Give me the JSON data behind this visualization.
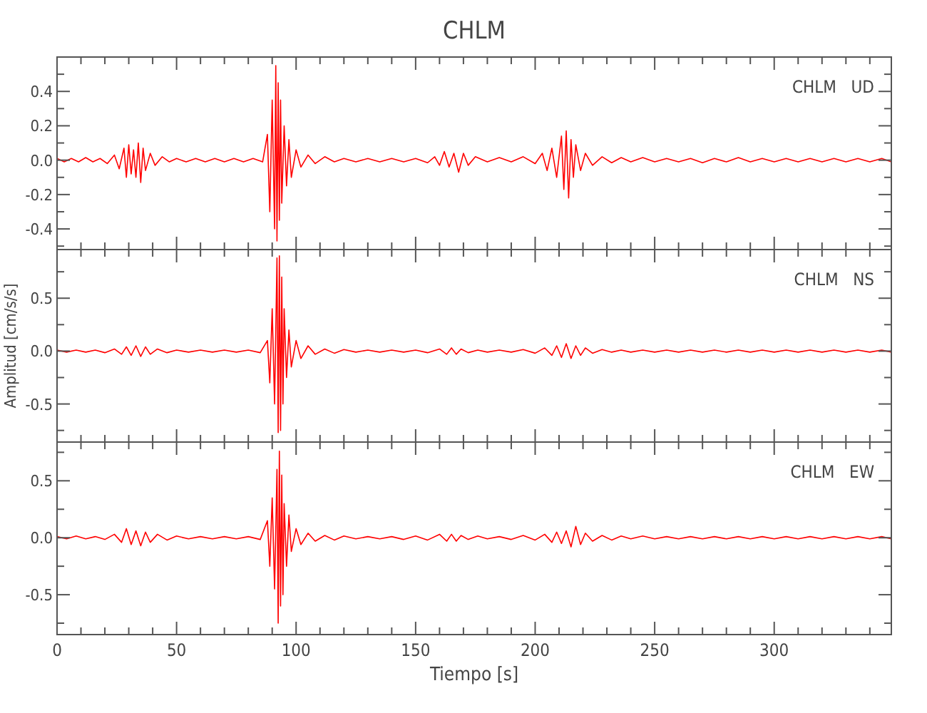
{
  "chart_data": [
    {
      "type": "line",
      "title": "CHLM",
      "annotations": [
        "CHLM   UD"
      ],
      "tick_labels": "y",
      "xlim": [
        0,
        349
      ],
      "ylim": [
        -0.52,
        0.6
      ],
      "xticks": [
        0,
        {
          "value": 10,
          "label": null
        },
        {
          "value": 20,
          "label": null
        },
        {
          "value": 30,
          "label": null
        },
        {
          "value": 40,
          "label": null
        },
        50,
        {
          "value": 60,
          "label": null
        },
        {
          "value": 70,
          "label": null
        },
        {
          "value": 80,
          "label": null
        },
        {
          "value": 90,
          "label": null
        },
        100,
        {
          "value": 110,
          "label": null
        },
        {
          "value": 120,
          "label": null
        },
        {
          "value": 130,
          "label": null
        },
        {
          "value": 140,
          "label": null
        },
        150,
        {
          "value": 160,
          "label": null
        },
        {
          "value": 170,
          "label": null
        },
        {
          "value": 180,
          "label": null
        },
        {
          "value": 190,
          "label": null
        },
        200,
        {
          "value": 210,
          "label": null
        },
        {
          "value": 220,
          "label": null
        },
        {
          "value": 230,
          "label": null
        },
        {
          "value": 240,
          "label": null
        },
        250,
        {
          "value": 260,
          "label": null
        },
        {
          "value": 270,
          "label": null
        },
        {
          "value": 280,
          "label": null
        },
        {
          "value": 290,
          "label": null
        },
        300,
        {
          "value": 310,
          "label": null
        },
        {
          "value": 320,
          "label": null
        },
        {
          "value": 330,
          "label": null
        },
        {
          "value": 340,
          "label": null
        }
      ],
      "yticks": [
        {
          "value": -0.5,
          "label": null
        },
        {
          "value": -0.4,
          "label": "-0.4"
        },
        {
          "value": -0.3,
          "label": null
        },
        {
          "value": -0.2,
          "label": "-0.2"
        },
        {
          "value": -0.1,
          "label": null
        },
        {
          "value": 0,
          "label": "0.0"
        },
        {
          "value": 0.1,
          "label": null
        },
        {
          "value": 0.2,
          "label": "0.2"
        },
        {
          "value": 0.3,
          "label": null
        },
        {
          "value": 0.4,
          "label": "0.4"
        },
        {
          "value": 0.5,
          "label": null
        }
      ],
      "series": [
        {
          "color": "#ff0000",
          "x": [
            0,
            3,
            6,
            9,
            12,
            15,
            18,
            21,
            24,
            26,
            28,
            29,
            30,
            31,
            32,
            33,
            34,
            35,
            36,
            37,
            39,
            41,
            44,
            47,
            50,
            54,
            58,
            62,
            66,
            70,
            74,
            78,
            82,
            86,
            88,
            89,
            90,
            91,
            91.5,
            92,
            92.5,
            93,
            93.5,
            94,
            95,
            96,
            97,
            98,
            100,
            102,
            105,
            108,
            112,
            116,
            120,
            125,
            130,
            135,
            140,
            145,
            150,
            155,
            158,
            160,
            162,
            164,
            166,
            168,
            170,
            172,
            175,
            180,
            185,
            190,
            195,
            200,
            203,
            205,
            207,
            209,
            211,
            212,
            213,
            214,
            215,
            216,
            217,
            219,
            221,
            224,
            228,
            232,
            236,
            240,
            245,
            250,
            255,
            260,
            265,
            270,
            275,
            280,
            285,
            290,
            295,
            300,
            305,
            310,
            315,
            320,
            325,
            330,
            335,
            340,
            345,
            349
          ],
          "values": [
            0.01,
            -0.01,
            0.01,
            -0.01,
            0.015,
            -0.01,
            0.01,
            -0.02,
            0.03,
            -0.05,
            0.07,
            -0.1,
            0.09,
            -0.08,
            0.06,
            -0.1,
            0.1,
            -0.13,
            0.07,
            -0.06,
            0.04,
            -0.03,
            0.02,
            -0.01,
            0.01,
            -0.01,
            0.01,
            -0.01,
            0.01,
            -0.01,
            0.01,
            -0.01,
            0.01,
            -0.01,
            0.15,
            -0.3,
            0.35,
            -0.4,
            0.55,
            -0.47,
            0.45,
            -0.35,
            0.35,
            -0.25,
            0.2,
            -0.15,
            0.12,
            -0.1,
            0.06,
            -0.04,
            0.03,
            -0.02,
            0.02,
            -0.01,
            0.01,
            -0.01,
            0.01,
            -0.01,
            0.01,
            -0.01,
            0.01,
            -0.015,
            0.02,
            -0.03,
            0.05,
            -0.04,
            0.04,
            -0.07,
            0.04,
            -0.03,
            0.02,
            -0.01,
            0.015,
            -0.01,
            0.02,
            -0.02,
            0.04,
            -0.06,
            0.07,
            -0.1,
            0.14,
            -0.17,
            0.17,
            -0.22,
            0.12,
            -0.1,
            0.09,
            -0.06,
            0.04,
            -0.03,
            0.02,
            -0.015,
            0.015,
            -0.01,
            0.015,
            -0.01,
            0.01,
            -0.01,
            0.01,
            -0.015,
            0.01,
            -0.01,
            0.015,
            -0.01,
            0.01,
            -0.01,
            0.01,
            -0.01,
            0.01,
            -0.01,
            0.01,
            -0.01,
            0.01,
            -0.01,
            0.01,
            -0.01
          ]
        }
      ]
    },
    {
      "type": "line",
      "ylabel": "Amplitud [cm/s/s]",
      "annotations": [
        "CHLM   NS"
      ],
      "tick_labels": "y",
      "xlim": [
        0,
        349
      ],
      "ylim": [
        -0.86,
        0.96
      ],
      "xticks": [
        0,
        {
          "value": 10,
          "label": null
        },
        {
          "value": 20,
          "label": null
        },
        {
          "value": 30,
          "label": null
        },
        {
          "value": 40,
          "label": null
        },
        50,
        {
          "value": 60,
          "label": null
        },
        {
          "value": 70,
          "label": null
        },
        {
          "value": 80,
          "label": null
        },
        {
          "value": 90,
          "label": null
        },
        100,
        {
          "value": 110,
          "label": null
        },
        {
          "value": 120,
          "label": null
        },
        {
          "value": 130,
          "label": null
        },
        {
          "value": 140,
          "label": null
        },
        150,
        {
          "value": 160,
          "label": null
        },
        {
          "value": 170,
          "label": null
        },
        {
          "value": 180,
          "label": null
        },
        {
          "value": 190,
          "label": null
        },
        200,
        {
          "value": 210,
          "label": null
        },
        {
          "value": 220,
          "label": null
        },
        {
          "value": 230,
          "label": null
        },
        {
          "value": 240,
          "label": null
        },
        250,
        {
          "value": 260,
          "label": null
        },
        {
          "value": 270,
          "label": null
        },
        {
          "value": 280,
          "label": null
        },
        {
          "value": 290,
          "label": null
        },
        300,
        {
          "value": 310,
          "label": null
        },
        {
          "value": 320,
          "label": null
        },
        {
          "value": 330,
          "label": null
        },
        {
          "value": 340,
          "label": null
        }
      ],
      "yticks": [
        {
          "value": -0.75,
          "label": null
        },
        {
          "value": -0.5,
          "label": "-0.5"
        },
        {
          "value": -0.25,
          "label": null
        },
        {
          "value": 0,
          "label": "0.0"
        },
        {
          "value": 0.25,
          "label": null
        },
        {
          "value": 0.5,
          "label": "0.5"
        },
        {
          "value": 0.75,
          "label": null
        }
      ],
      "series": [
        {
          "color": "#ff0000",
          "x": [
            0,
            4,
            8,
            12,
            16,
            20,
            24,
            27,
            29,
            31,
            33,
            35,
            37,
            39,
            42,
            46,
            50,
            55,
            60,
            65,
            70,
            75,
            80,
            85,
            88,
            89,
            90,
            91,
            92,
            92.5,
            93,
            93.5,
            94,
            94.5,
            95,
            96,
            97,
            98,
            100,
            102,
            105,
            108,
            112,
            116,
            120,
            125,
            130,
            135,
            140,
            145,
            150,
            155,
            160,
            163,
            165,
            167,
            169,
            172,
            176,
            180,
            185,
            190,
            195,
            200,
            204,
            207,
            209,
            211,
            213,
            215,
            217,
            219,
            221,
            224,
            228,
            232,
            236,
            240,
            245,
            250,
            255,
            260,
            265,
            270,
            275,
            280,
            285,
            290,
            295,
            300,
            305,
            310,
            315,
            320,
            325,
            330,
            335,
            340,
            345,
            349
          ],
          "values": [
            0.01,
            -0.01,
            0.01,
            -0.01,
            0.01,
            -0.015,
            0.02,
            -0.03,
            0.04,
            -0.04,
            0.05,
            -0.05,
            0.04,
            -0.03,
            0.02,
            -0.015,
            0.01,
            -0.01,
            0.01,
            -0.01,
            0.01,
            -0.01,
            0.01,
            -0.015,
            0.1,
            -0.3,
            0.4,
            -0.5,
            0.88,
            -0.77,
            0.9,
            -0.75,
            0.7,
            -0.5,
            0.4,
            -0.25,
            0.2,
            -0.15,
            0.1,
            -0.07,
            0.05,
            -0.03,
            0.02,
            -0.02,
            0.015,
            -0.01,
            0.01,
            -0.01,
            0.01,
            -0.01,
            0.01,
            -0.015,
            0.02,
            -0.03,
            0.03,
            -0.03,
            0.02,
            -0.015,
            0.01,
            -0.01,
            0.01,
            -0.01,
            0.015,
            -0.02,
            0.03,
            -0.04,
            0.05,
            -0.06,
            0.07,
            -0.07,
            0.05,
            -0.04,
            0.03,
            -0.02,
            0.015,
            -0.01,
            0.01,
            -0.01,
            0.01,
            -0.01,
            0.01,
            -0.01,
            0.01,
            -0.01,
            0.01,
            -0.01,
            0.01,
            -0.01,
            0.01,
            -0.01,
            0.01,
            -0.01,
            0.01,
            -0.01,
            0.01,
            -0.01,
            0.01,
            -0.01,
            0.01,
            -0.01
          ]
        }
      ]
    },
    {
      "type": "line",
      "xlabel": "Tiempo [s]",
      "annotations": [
        "CHLM   EW"
      ],
      "xlim": [
        0,
        349
      ],
      "ylim": [
        -0.85,
        0.84
      ],
      "xticks": [
        0,
        {
          "value": 10,
          "label": null
        },
        {
          "value": 20,
          "label": null
        },
        {
          "value": 30,
          "label": null
        },
        {
          "value": 40,
          "label": null
        },
        50,
        {
          "value": 60,
          "label": null
        },
        {
          "value": 70,
          "label": null
        },
        {
          "value": 80,
          "label": null
        },
        {
          "value": 90,
          "label": null
        },
        100,
        {
          "value": 110,
          "label": null
        },
        {
          "value": 120,
          "label": null
        },
        {
          "value": 130,
          "label": null
        },
        {
          "value": 140,
          "label": null
        },
        150,
        {
          "value": 160,
          "label": null
        },
        {
          "value": 170,
          "label": null
        },
        {
          "value": 180,
          "label": null
        },
        {
          "value": 190,
          "label": null
        },
        200,
        {
          "value": 210,
          "label": null
        },
        {
          "value": 220,
          "label": null
        },
        {
          "value": 230,
          "label": null
        },
        {
          "value": 240,
          "label": null
        },
        250,
        {
          "value": 260,
          "label": null
        },
        {
          "value": 270,
          "label": null
        },
        {
          "value": 280,
          "label": null
        },
        {
          "value": 290,
          "label": null
        },
        300,
        {
          "value": 310,
          "label": null
        },
        {
          "value": 320,
          "label": null
        },
        {
          "value": 330,
          "label": null
        },
        {
          "value": 340,
          "label": null
        }
      ],
      "yticks": [
        {
          "value": -0.75,
          "label": null
        },
        {
          "value": -0.5,
          "label": "-0.5"
        },
        {
          "value": -0.25,
          "label": null
        },
        {
          "value": 0,
          "label": "0.0"
        },
        {
          "value": 0.25,
          "label": null
        },
        {
          "value": 0.5,
          "label": "0.5"
        },
        {
          "value": 0.75,
          "label": null
        }
      ],
      "series": [
        {
          "color": "#ff0000",
          "x": [
            0,
            4,
            8,
            12,
            16,
            20,
            24,
            27,
            29,
            31,
            33,
            35,
            37,
            39,
            42,
            46,
            50,
            55,
            60,
            65,
            70,
            75,
            80,
            85,
            88,
            89,
            90,
            91,
            92,
            92.5,
            93,
            93.5,
            94,
            94.5,
            95,
            96,
            97,
            98,
            100,
            102,
            105,
            108,
            112,
            116,
            120,
            125,
            130,
            135,
            140,
            145,
            150,
            155,
            160,
            163,
            165,
            167,
            169,
            172,
            176,
            180,
            185,
            190,
            195,
            200,
            204,
            207,
            209,
            211,
            213,
            215,
            217,
            219,
            221,
            224,
            228,
            232,
            236,
            240,
            245,
            250,
            255,
            260,
            265,
            270,
            275,
            280,
            285,
            290,
            295,
            300,
            305,
            310,
            315,
            320,
            325,
            330,
            335,
            340,
            345,
            349
          ],
          "values": [
            0.01,
            -0.01,
            0.015,
            -0.01,
            0.01,
            -0.015,
            0.03,
            -0.04,
            0.08,
            -0.06,
            0.06,
            -0.07,
            0.05,
            -0.04,
            0.03,
            -0.02,
            0.015,
            -0.01,
            0.01,
            -0.01,
            0.01,
            -0.01,
            0.01,
            -0.015,
            0.15,
            -0.25,
            0.35,
            -0.45,
            0.6,
            -0.75,
            0.76,
            -0.6,
            0.55,
            -0.5,
            0.3,
            -0.25,
            0.2,
            -0.12,
            0.08,
            -0.06,
            0.04,
            -0.03,
            0.02,
            -0.02,
            0.015,
            -0.01,
            0.01,
            -0.01,
            0.01,
            -0.015,
            0.015,
            -0.02,
            0.03,
            -0.03,
            0.03,
            -0.03,
            0.02,
            -0.015,
            0.015,
            -0.01,
            0.01,
            -0.015,
            0.02,
            -0.02,
            0.03,
            -0.04,
            0.05,
            -0.05,
            0.06,
            -0.08,
            0.1,
            -0.06,
            0.04,
            -0.03,
            0.02,
            -0.02,
            0.015,
            -0.01,
            0.015,
            -0.01,
            0.01,
            -0.01,
            0.01,
            -0.01,
            0.01,
            -0.01,
            0.01,
            -0.01,
            0.01,
            -0.01,
            0.01,
            -0.01,
            0.01,
            -0.01,
            0.01,
            -0.01,
            0.01,
            -0.01,
            0.01,
            -0.01
          ]
        }
      ]
    }
  ]
}
